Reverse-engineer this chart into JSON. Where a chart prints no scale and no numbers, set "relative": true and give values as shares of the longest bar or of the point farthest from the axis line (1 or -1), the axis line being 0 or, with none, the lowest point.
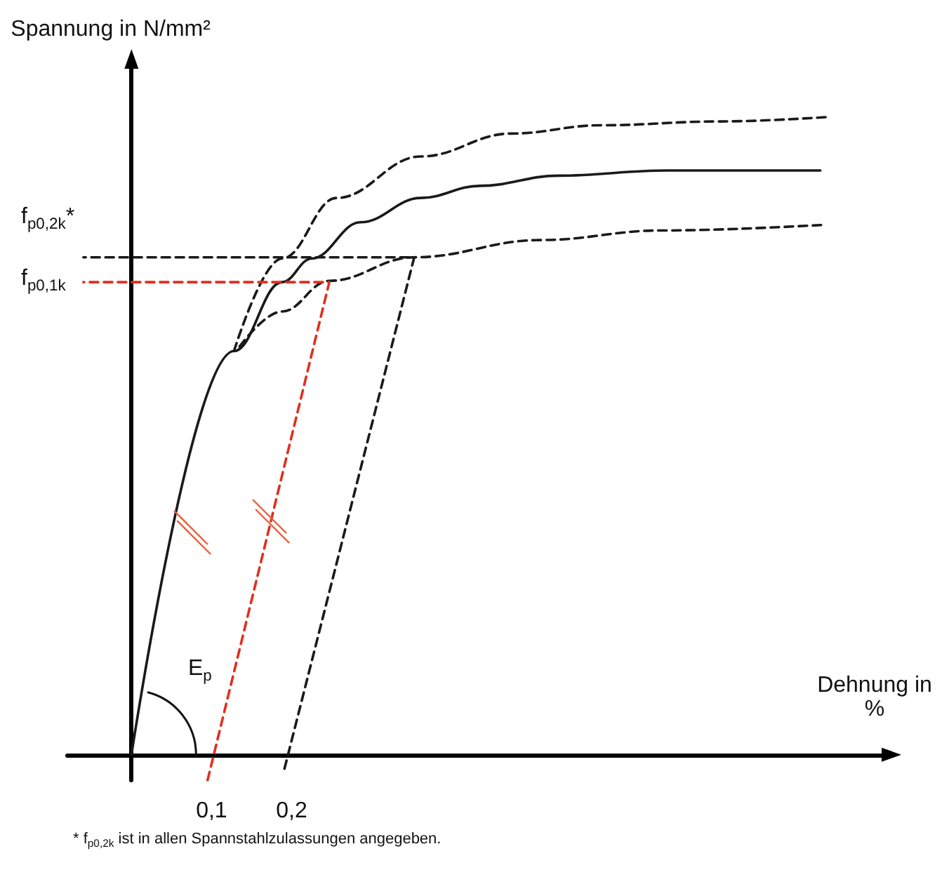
{
  "chart_data": {
    "type": "line",
    "relative": true,
    "xlabel": "Dehnung in %",
    "ylabel": "Spannung in N/mm²",
    "xlim": [
      -0.08,
      0.94
    ],
    "xticks": [
      {
        "value": 0.1,
        "label": "0,1"
      },
      {
        "value": 0.2,
        "label": "0,2"
      }
    ],
    "grid": false,
    "marker": "none",
    "series": [
      {
        "color": "#1a1a1a",
        "line_style": "solid",
        "x": [
          0,
          0.128,
          0.188,
          0.225,
          0.286,
          0.361,
          0.435,
          0.533,
          0.668,
          0.86
        ],
        "values": [
          0,
          0.633,
          0.741,
          0.778,
          0.835,
          0.873,
          0.892,
          0.908,
          0.916,
          0.916
        ]
      },
      {
        "color": "#1a1a1a",
        "line_style": "dashed",
        "x": [
          0.128,
          0.188,
          0.256,
          0.361,
          0.474,
          0.586,
          0.735,
          0.87
        ],
        "values": [
          0.633,
          0.778,
          0.873,
          0.938,
          0.974,
          0.987,
          0.993,
          1
        ]
      },
      {
        "color": "#1a1a1a",
        "line_style": "dashed",
        "x": [
          0.135,
          0.188,
          0.247,
          0.353,
          0.511,
          0.661,
          0.867
        ],
        "values": [
          0.64,
          0.695,
          0.743,
          0.78,
          0.807,
          0.822,
          0.831
        ]
      },
      {
        "color": "#e0301e",
        "line_style": "dashed",
        "x": [
          0.095,
          0.247,
          -0.06
        ],
        "values": [
          -0.04,
          0.741,
          0.741
        ]
      },
      {
        "color": "#1a1a1a",
        "line_style": "dashed",
        "x": [
          0.191,
          0.353,
          -0.06
        ],
        "values": [
          -0.022,
          0.78,
          0.78
        ]
      }
    ],
    "annotations": [
      "E$_{p}$",
      "f$_{p0,2k}$*",
      "f$_{p0,1k}$",
      "* f$_{p0,2k}$ ist in allen Spannstahlzulassungen angegeben."
    ]
  }
}
